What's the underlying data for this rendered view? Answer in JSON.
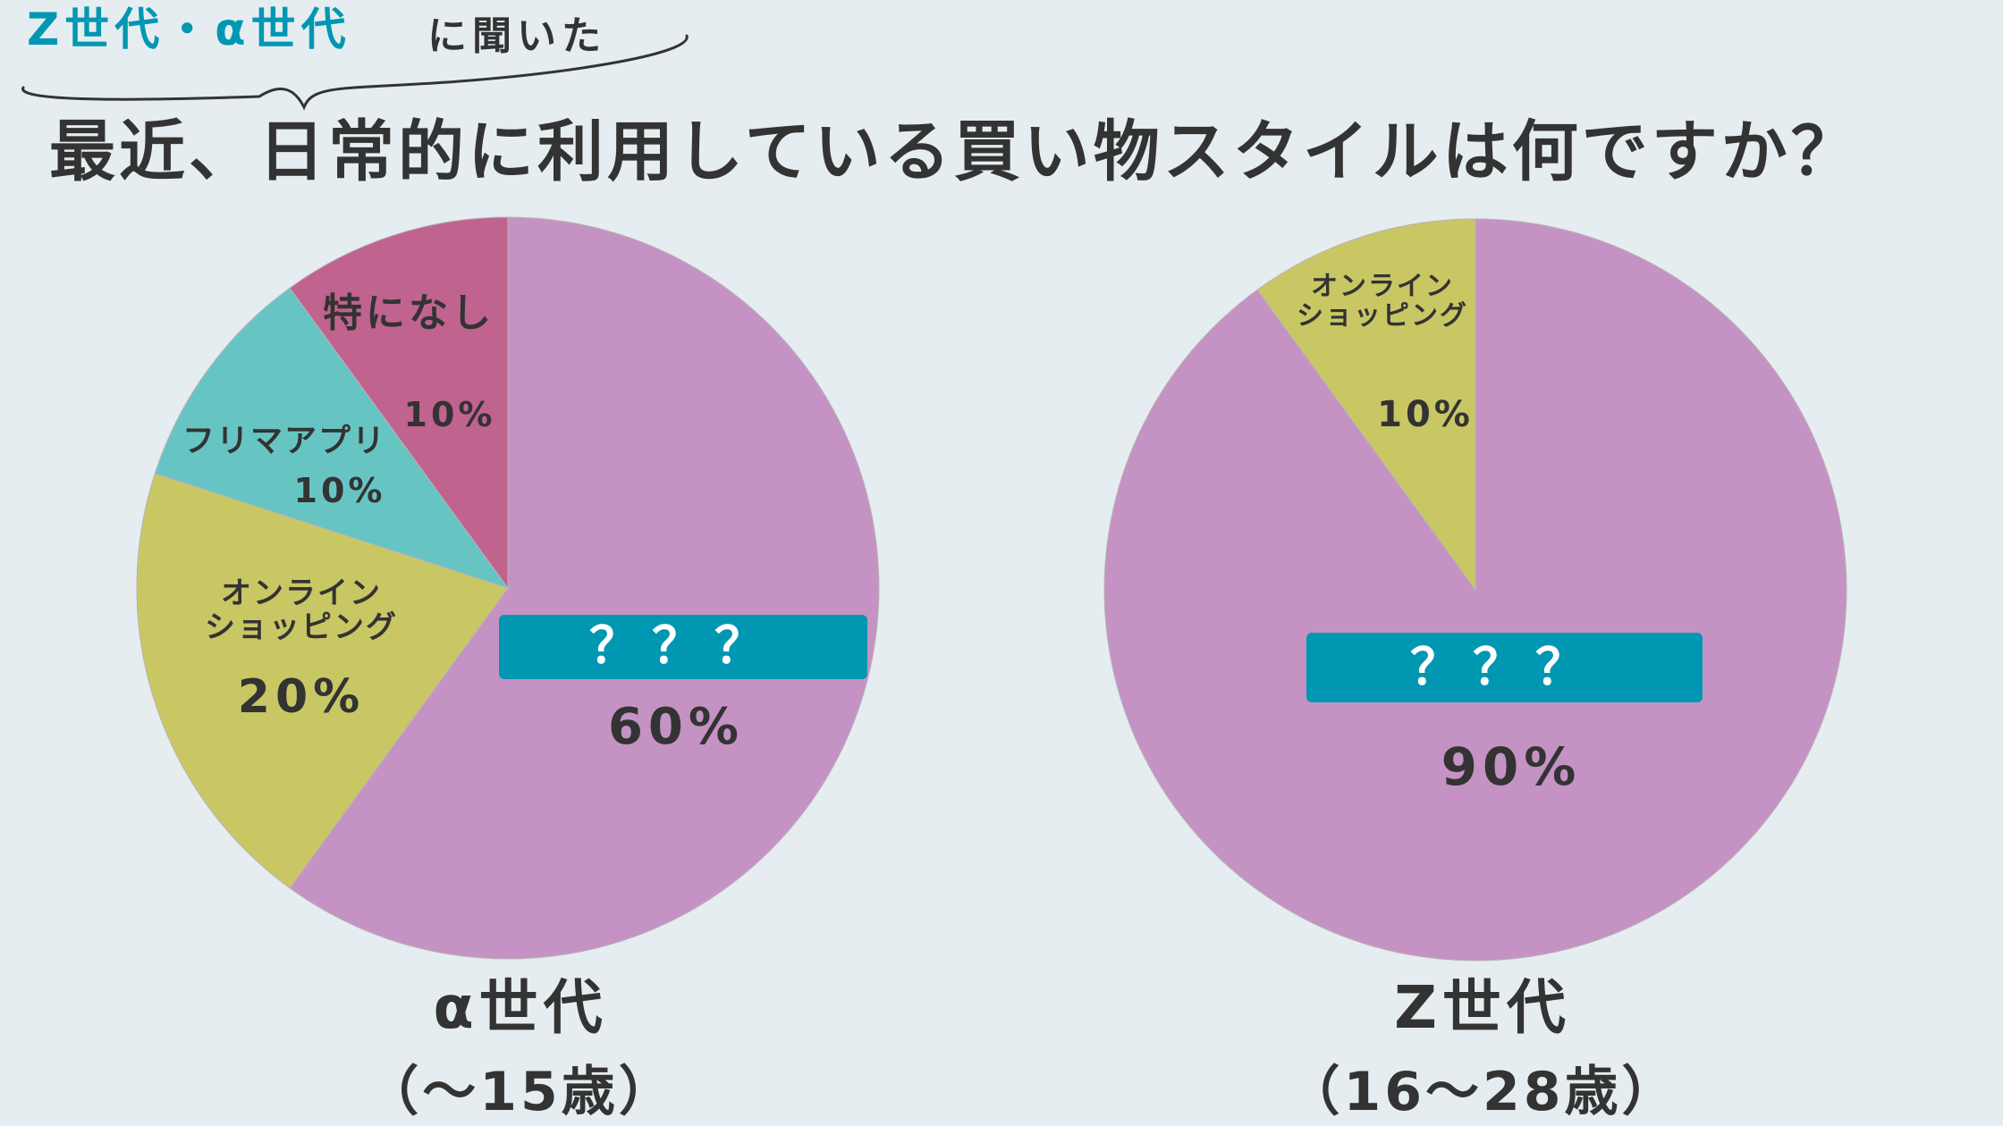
{
  "header": {
    "tag_highlight": "Z世代・α世代",
    "tag_rest": "に聞いた",
    "question": "最近、日常的に利用している買い物スタイルは何ですか？"
  },
  "colors": {
    "background": "#e5edf0",
    "accent": "#0097b2",
    "text": "#333333",
    "unknown": "#c593c3",
    "online": "#c9c764",
    "flea": "#66c5c3",
    "none": "#c1638f"
  },
  "chart_data": [
    {
      "type": "pie",
      "title": "α世代",
      "subtitle": "（〜15歳）",
      "slices": [
        {
          "label": "？？？",
          "value": 60,
          "pct_label": "60%",
          "color": "#c593c3"
        },
        {
          "label": "オンライン\nショッピング",
          "value": 20,
          "pct_label": "20%",
          "color": "#c9c764"
        },
        {
          "label": "フリマアプリ",
          "value": 10,
          "pct_label": "10%",
          "color": "#66c5c3"
        },
        {
          "label": "特になし",
          "value": 10,
          "pct_label": "10%",
          "color": "#c1638f"
        }
      ]
    },
    {
      "type": "pie",
      "title": "Z世代",
      "subtitle": "（16〜28歳）",
      "slices": [
        {
          "label": "？？？",
          "value": 90,
          "pct_label": "90%",
          "color": "#c593c3"
        },
        {
          "label": "オンライン\nショッピング",
          "value": 10,
          "pct_label": "10%",
          "color": "#c9c764"
        }
      ]
    }
  ]
}
